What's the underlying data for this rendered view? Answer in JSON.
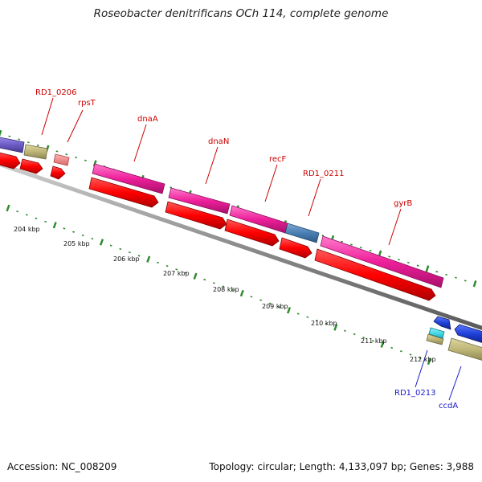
{
  "title": "Roseobacter denitrificans OCh 114, complete genome",
  "footer": {
    "accession": "Accession: NC_008209",
    "summary": "Topology: circular; Length: 4,133,097 bp; Genes: 3,988"
  },
  "scale_labels": [
    "204 kbp",
    "205 kbp",
    "206 kbp",
    "207 kbp",
    "208 kbp",
    "209 kbp",
    "210 kbp",
    "211 kbp",
    "212 kbp"
  ],
  "gene_labels": [
    "RD1_0206",
    "rpsT",
    "dnaA",
    "dnaN",
    "recF",
    "RD1_0211",
    "gyrB",
    "RD1_0213",
    "ccdA"
  ],
  "colors": {
    "cds_red": "#ff0000",
    "gene_pink": "#ee1f9a",
    "blue_gene": "#1f3fd6",
    "steel_blue": "#4a7fb3",
    "khaki": "#bdb576",
    "purple": "#6e5cc8",
    "salmon": "#f08a8a",
    "cyan": "#22e0f0",
    "tick_green": "#2e8b2e",
    "label_red": "#cc0000",
    "label_blue": "#1a1acc",
    "backbone": "#8c8c8c"
  }
}
